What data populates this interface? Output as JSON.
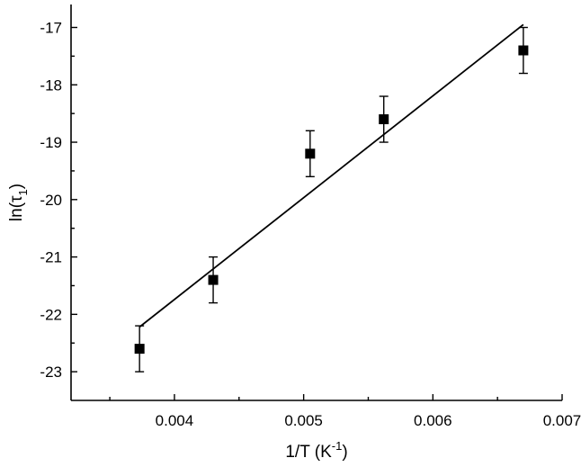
{
  "chart_data": {
    "type": "scatter",
    "xlabel": "1/T (K⁻¹)",
    "ylabel": "ln(τ₁)",
    "xlabel_parts": {
      "base": "1/T (K",
      "sup": "-1",
      "tail": ")"
    },
    "ylabel_parts": {
      "base": "ln(τ",
      "sub": "1",
      "tail": ")"
    },
    "xlim": [
      0.0032,
      0.007
    ],
    "ylim": [
      -23.5,
      -16.6
    ],
    "x_ticks": [
      0.004,
      0.005,
      0.006,
      0.007
    ],
    "x_tick_labels": [
      "0.004",
      "0.005",
      "0.006",
      "0.007"
    ],
    "y_ticks": [
      -17,
      -18,
      -19,
      -20,
      -21,
      -22,
      -23
    ],
    "y_tick_labels": [
      "-17",
      "-18",
      "-19",
      "-20",
      "-21",
      "-22",
      "-23"
    ],
    "grid": false,
    "legend": "none",
    "series": [
      {
        "marker": "square",
        "x": [
          0.00373,
          0.0043,
          0.00505,
          0.00562,
          0.0067
        ],
        "y": [
          -22.6,
          -21.4,
          -19.2,
          -18.6,
          -17.4
        ],
        "y_error": [
          0.4,
          0.4,
          0.4,
          0.4,
          0.4
        ]
      }
    ],
    "fit_line": {
      "x": [
        0.00373,
        0.0067
      ],
      "y": [
        -22.22,
        -16.95
      ]
    },
    "colors": {
      "marker": "#000000",
      "line": "#000000"
    }
  }
}
